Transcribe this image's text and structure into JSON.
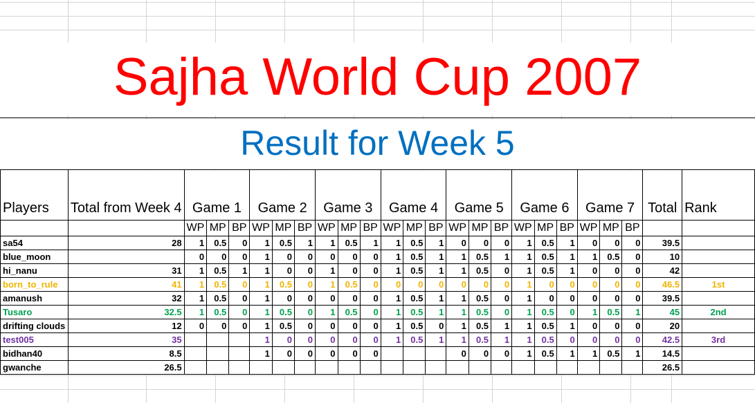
{
  "title": "Sajha World Cup 2007",
  "subtitle": "Result for Week 5",
  "headers": {
    "players": "Players",
    "total_from": "Total from Week 4",
    "games": [
      "Game 1",
      "Game 2",
      "Game 3",
      "Game 4",
      "Game 5",
      "Game 6",
      "Game 7"
    ],
    "total": "Total",
    "rank": "Rank",
    "sub": [
      "WP",
      "MP",
      "BP"
    ]
  },
  "colors": {
    "gold": "#f0b400",
    "green": "#00a050",
    "purple": "#7030a0",
    "black": "#000000"
  },
  "rows": [
    {
      "name": "sa54",
      "prev": "28",
      "games": [
        [
          "1",
          "0.5",
          "0"
        ],
        [
          "1",
          "0.5",
          "1"
        ],
        [
          "1",
          "0.5",
          "1"
        ],
        [
          "1",
          "0.5",
          "1"
        ],
        [
          "0",
          "0",
          "0"
        ],
        [
          "1",
          "0.5",
          "1"
        ],
        [
          "0",
          "0",
          "0"
        ]
      ],
      "total": "39.5",
      "rank": "",
      "color": "black"
    },
    {
      "name": "blue_moon",
      "prev": "",
      "games": [
        [
          "0",
          "0",
          "0"
        ],
        [
          "1",
          "0",
          "0"
        ],
        [
          "0",
          "0",
          "0"
        ],
        [
          "1",
          "0.5",
          "1"
        ],
        [
          "1",
          "0.5",
          "1"
        ],
        [
          "1",
          "0.5",
          "1"
        ],
        [
          "1",
          "0.5",
          "0"
        ]
      ],
      "total": "10",
      "rank": "",
      "color": "black"
    },
    {
      "name": "hi_nanu",
      "prev": "31",
      "games": [
        [
          "1",
          "0.5",
          "1"
        ],
        [
          "1",
          "0",
          "0"
        ],
        [
          "1",
          "0",
          "0"
        ],
        [
          "1",
          "0.5",
          "1"
        ],
        [
          "1",
          "0.5",
          "0"
        ],
        [
          "1",
          "0.5",
          "1"
        ],
        [
          "0",
          "0",
          "0"
        ]
      ],
      "total": "42",
      "rank": "",
      "color": "black"
    },
    {
      "name": "born_to_rule",
      "prev": "41",
      "games": [
        [
          "1",
          "0.5",
          "0"
        ],
        [
          "1",
          "0.5",
          "0"
        ],
        [
          "1",
          "0.5",
          "0"
        ],
        [
          "0",
          "0",
          "0"
        ],
        [
          "0",
          "0",
          "0"
        ],
        [
          "1",
          "0",
          "0"
        ],
        [
          "0",
          "0",
          "0"
        ]
      ],
      "total": "46.5",
      "rank": "1st",
      "color": "gold"
    },
    {
      "name": "amanush",
      "prev": "32",
      "games": [
        [
          "1",
          "0.5",
          "0"
        ],
        [
          "1",
          "0",
          "0"
        ],
        [
          "0",
          "0",
          "0"
        ],
        [
          "1",
          "0.5",
          "1"
        ],
        [
          "1",
          "0.5",
          "0"
        ],
        [
          "1",
          "0",
          "0"
        ],
        [
          "0",
          "0",
          "0"
        ]
      ],
      "total": "39.5",
      "rank": "",
      "color": "black"
    },
    {
      "name": "Tusaro",
      "prev": "32.5",
      "games": [
        [
          "1",
          "0.5",
          "0"
        ],
        [
          "1",
          "0.5",
          "0"
        ],
        [
          "1",
          "0.5",
          "0"
        ],
        [
          "1",
          "0.5",
          "1"
        ],
        [
          "1",
          "0.5",
          "0"
        ],
        [
          "1",
          "0.5",
          "0"
        ],
        [
          "1",
          "0.5",
          "1"
        ]
      ],
      "total": "45",
      "rank": "2nd",
      "color": "green"
    },
    {
      "name": "drifting clouds",
      "prev": "12",
      "games": [
        [
          "0",
          "0",
          "0"
        ],
        [
          "1",
          "0.5",
          "0"
        ],
        [
          "0",
          "0",
          "0"
        ],
        [
          "1",
          "0.5",
          "0"
        ],
        [
          "1",
          "0.5",
          "1"
        ],
        [
          "1",
          "0.5",
          "1"
        ],
        [
          "0",
          "0",
          "0"
        ]
      ],
      "total": "20",
      "rank": "",
      "color": "black"
    },
    {
      "name": "test005",
      "prev": "35",
      "games": [
        [
          "",
          "",
          ""
        ],
        [
          "1",
          "0",
          "0"
        ],
        [
          "0",
          "0",
          "0"
        ],
        [
          "1",
          "0.5",
          "1"
        ],
        [
          "1",
          "0.5",
          "1"
        ],
        [
          "1",
          "0.5",
          "0"
        ],
        [
          "0",
          "0",
          "0"
        ]
      ],
      "total": "42.5",
      "rank": "3rd",
      "color": "purple"
    },
    {
      "name": "bidhan40",
      "prev": "8.5",
      "games": [
        [
          "",
          "",
          ""
        ],
        [
          "1",
          "0",
          "0"
        ],
        [
          "0",
          "0",
          "0"
        ],
        [
          "",
          "",
          ""
        ],
        [
          "0",
          "0",
          "0"
        ],
        [
          "1",
          "0.5",
          "1"
        ],
        [
          "1",
          "0.5",
          "1"
        ]
      ],
      "total": "14.5",
      "rank": "",
      "color": "black"
    },
    {
      "name": "gwanche",
      "prev": "26.5",
      "games": [
        [
          "",
          "",
          ""
        ],
        [
          "",
          "",
          ""
        ],
        [
          "",
          "",
          ""
        ],
        [
          "",
          "",
          ""
        ],
        [
          "",
          "",
          ""
        ],
        [
          "",
          "",
          ""
        ],
        [
          "",
          "",
          ""
        ]
      ],
      "total": "26.5",
      "rank": "",
      "color": "black"
    }
  ]
}
